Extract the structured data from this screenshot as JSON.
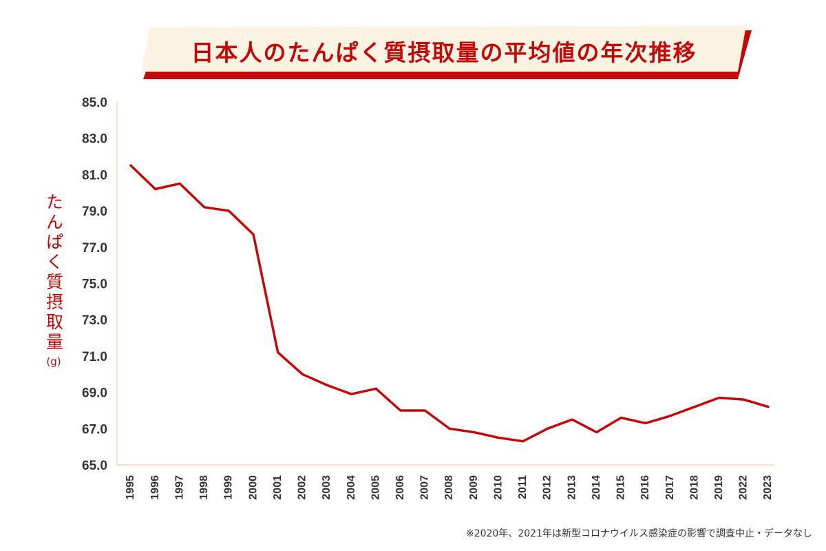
{
  "title": "日本人のたんぱく質摂取量の平均値の年次推移",
  "y_label": "たんぱく質摂取量",
  "y_unit": "(g)",
  "footnote": "※2020年、2021年は新型コロナウイルス感染症の影響で調査中止・データなし",
  "colors": {
    "accent": "#c00a0a",
    "banner_fill": "#fdf3e3",
    "axis": "#f3e2c2",
    "tick_text": "#333333"
  },
  "chart_data": {
    "type": "line",
    "title": "日本人のたんぱく質摂取量の平均値の年次推移",
    "xlabel": "",
    "ylabel": "たんぱく質摂取量(g)",
    "ylim": [
      65.0,
      85.0
    ],
    "yticks": [
      "65.0",
      "67.0",
      "69.0",
      "71.0",
      "73.0",
      "75.0",
      "77.0",
      "79.0",
      "81.0",
      "83.0",
      "85.0"
    ],
    "categories": [
      "1995",
      "1996",
      "1997",
      "1998",
      "1999",
      "2000",
      "2001",
      "2002",
      "2003",
      "2004",
      "2005",
      "2006",
      "2007",
      "2008",
      "2009",
      "2010",
      "2011",
      "2012",
      "2013",
      "2014",
      "2015",
      "2016",
      "2017",
      "2018",
      "2019",
      "2022",
      "2023"
    ],
    "series": [
      {
        "values": [
          81.5,
          80.2,
          80.5,
          79.2,
          79.0,
          77.7,
          71.2,
          70.0,
          69.4,
          68.9,
          69.2,
          68.0,
          68.0,
          67.0,
          66.8,
          66.5,
          66.3,
          67.0,
          67.5,
          66.8,
          67.6,
          67.3,
          67.7,
          68.2,
          68.7,
          68.6,
          68.2
        ]
      }
    ],
    "grid": false
  }
}
